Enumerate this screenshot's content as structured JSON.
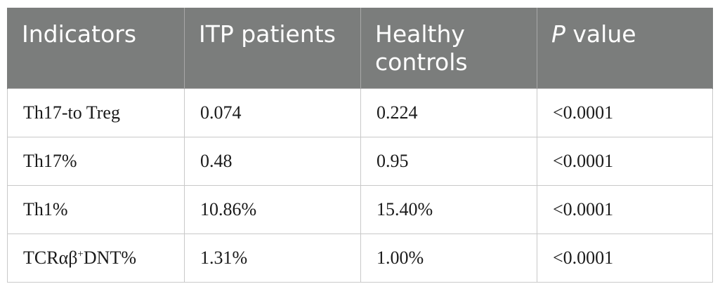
{
  "table": {
    "headers": [
      {
        "prefix": "Indicators",
        "suffix": ""
      },
      {
        "prefix": "ITP patients",
        "suffix": ""
      },
      {
        "line1": "Healthy",
        "line2": "controls"
      },
      {
        "italic": "P",
        "rest": " value"
      }
    ],
    "rows": [
      {
        "indicator": {
          "base": "Th17-to Treg",
          "sup": "",
          "tail": ""
        },
        "itp": "0.074",
        "healthy": "0.224",
        "p": "<0.0001"
      },
      {
        "indicator": {
          "base": "Th17%",
          "sup": "",
          "tail": ""
        },
        "itp": "0.48",
        "healthy": "0.95",
        "p": "<0.0001"
      },
      {
        "indicator": {
          "base": "Th1%",
          "sup": "",
          "tail": ""
        },
        "itp": "10.86%",
        "healthy": "15.40%",
        "p": "<0.0001"
      },
      {
        "indicator": {
          "base": "TCRαβ",
          "sup": "+",
          "tail": "DNT%"
        },
        "itp": "1.31%",
        "healthy": "1.00%",
        "p": "<0.0001"
      }
    ]
  }
}
